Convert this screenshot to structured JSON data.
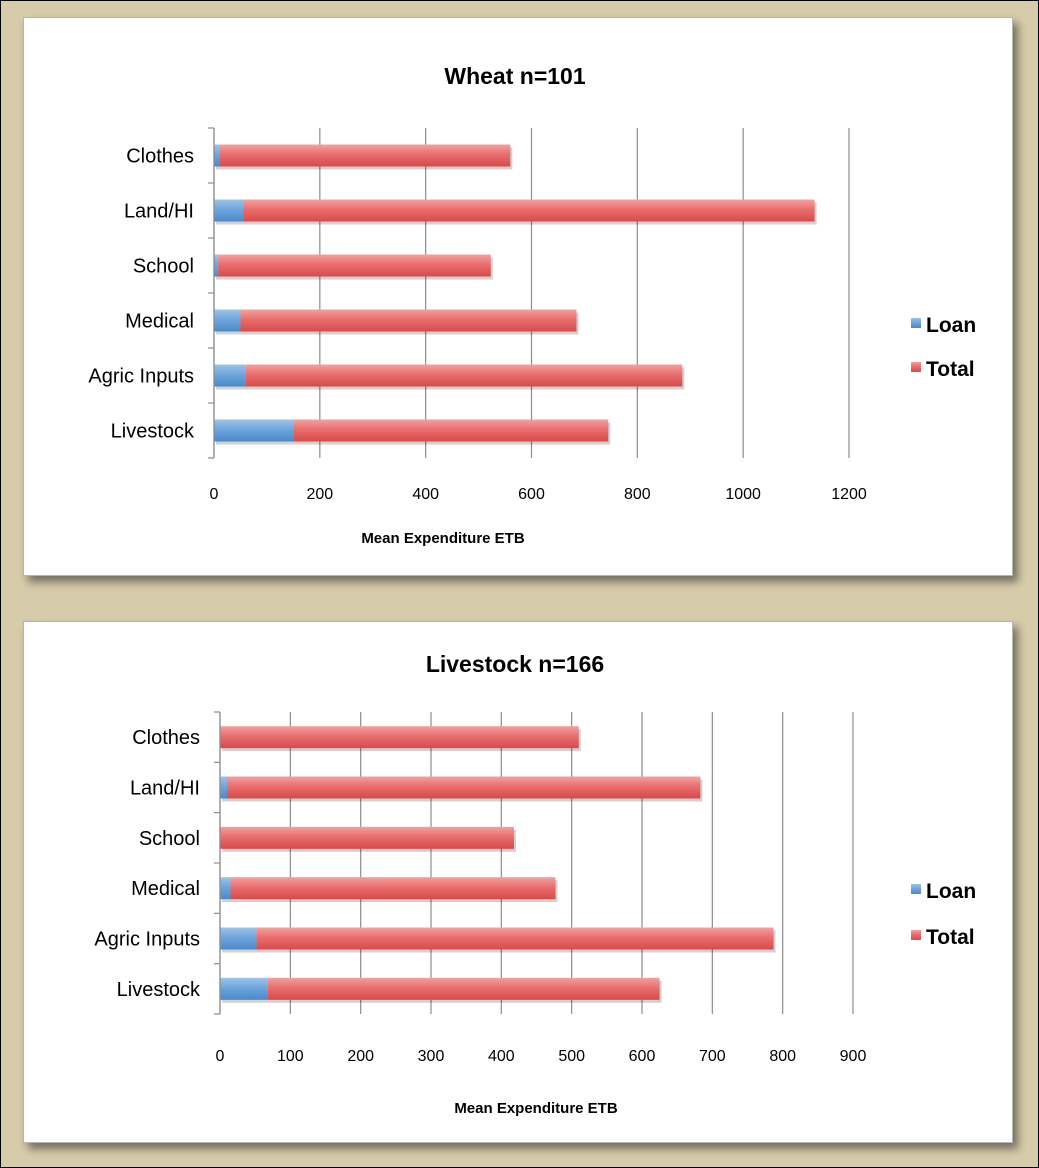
{
  "colors": {
    "loan": "#5b9bd5",
    "total": "#e5595a",
    "grid": "#8c8c8c"
  },
  "chart_data": [
    {
      "type": "bar",
      "orientation": "horizontal",
      "stacked": true,
      "title": "Wheat n=101",
      "xlabel": "Mean Expenditure ETB",
      "ylabel": "",
      "categories": [
        "Clothes",
        "Land/HI",
        "School",
        "Medical",
        "Agric Inputs",
        "Livestock"
      ],
      "series": [
        {
          "name": "Loan",
          "values": [
            10,
            55,
            8,
            50,
            60,
            150
          ]
        },
        {
          "name": "Total",
          "values": [
            550,
            1080,
            515,
            635,
            825,
            595
          ]
        }
      ],
      "xlim": [
        0,
        1200
      ],
      "xticks": [
        0,
        200,
        400,
        600,
        800,
        1000,
        1200
      ],
      "grid": "vertical",
      "legend": "right"
    },
    {
      "type": "bar",
      "orientation": "horizontal",
      "stacked": true,
      "title": "Livestock n=166",
      "xlabel": "Mean Expenditure ETB",
      "ylabel": "",
      "categories": [
        "Clothes",
        "Land/HI",
        "School",
        "Medical",
        "Agric Inputs",
        "Livestock"
      ],
      "series": [
        {
          "name": "Loan",
          "values": [
            0,
            10,
            0,
            15,
            52,
            68
          ]
        },
        {
          "name": "Total",
          "values": [
            510,
            673,
            418,
            462,
            735,
            557
          ]
        }
      ],
      "xlim": [
        0,
        900
      ],
      "xticks": [
        0,
        100,
        200,
        300,
        400,
        500,
        600,
        700,
        800,
        900
      ],
      "grid": "vertical",
      "legend": "right"
    }
  ]
}
